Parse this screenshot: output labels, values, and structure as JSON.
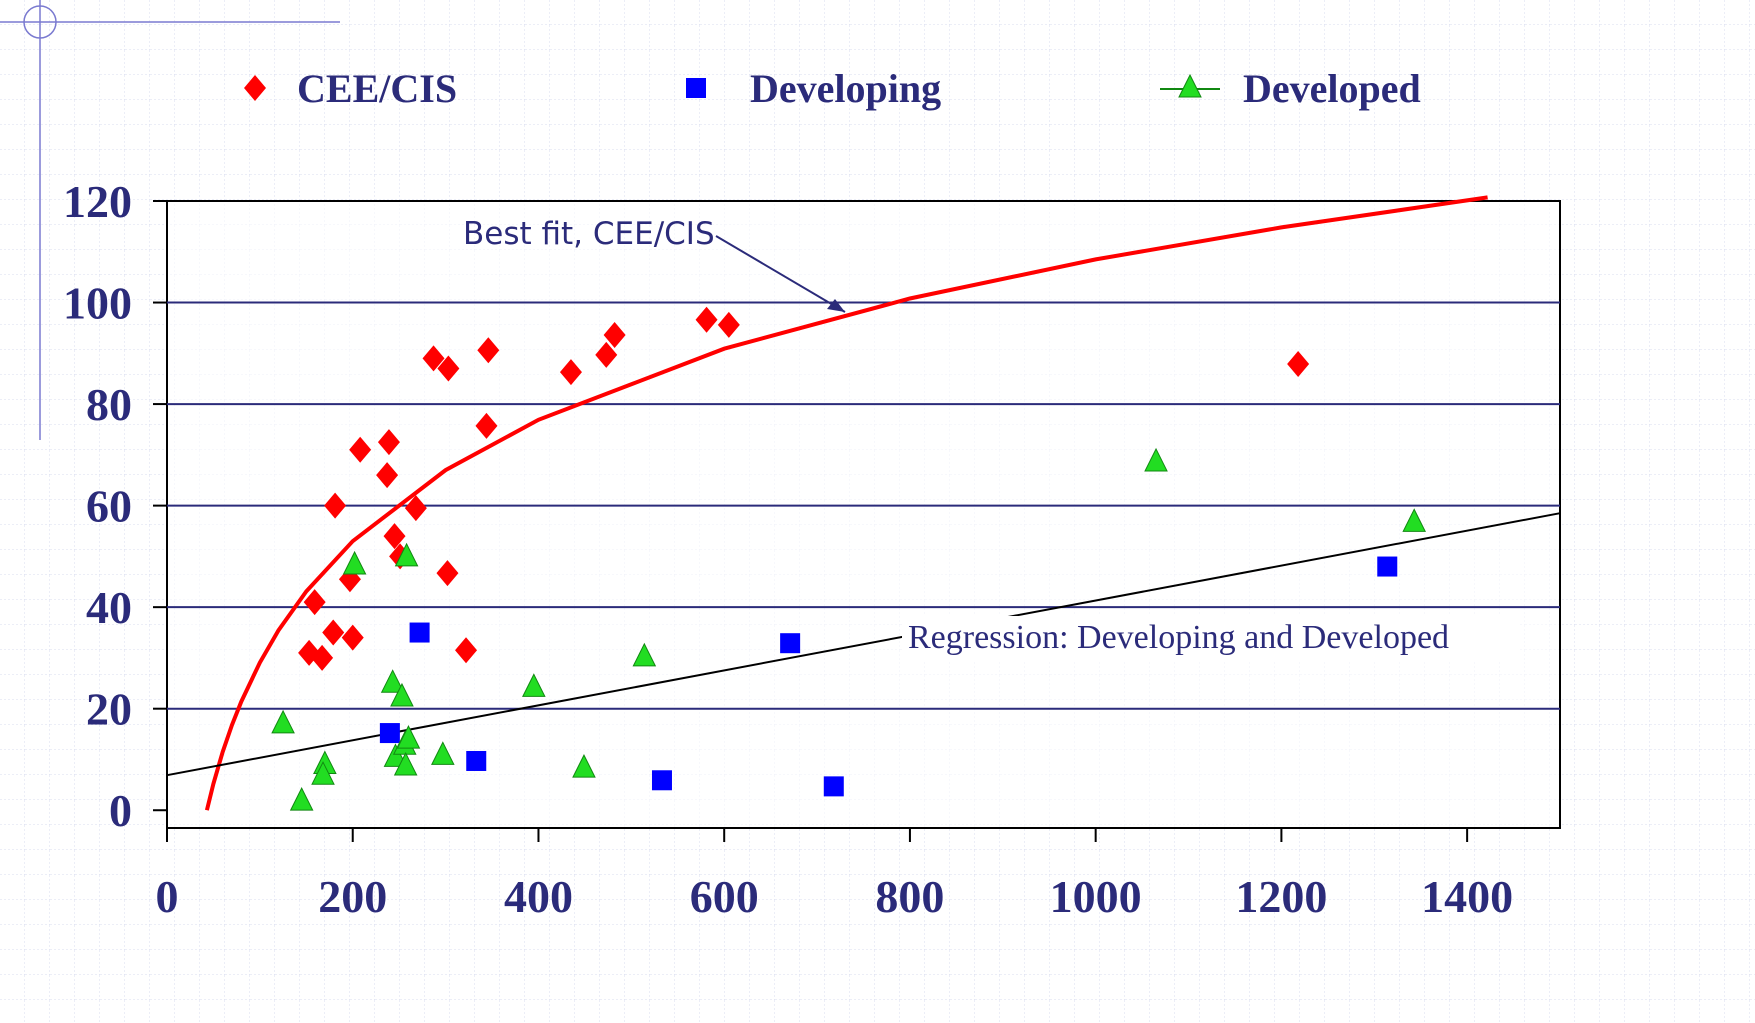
{
  "chart_data": {
    "type": "scatter",
    "xlim": [
      0,
      1500
    ],
    "ylim": [
      -3.5,
      120
    ],
    "xticks": [
      0,
      200,
      400,
      600,
      800,
      1000,
      1200,
      1400
    ],
    "yticks": [
      0,
      20,
      40,
      60,
      80,
      100,
      120
    ],
    "grid": true,
    "legend": "top",
    "series": [
      {
        "name": "CEE/CIS",
        "color": "#ff0000",
        "marker": "diamond",
        "x": [
          153,
          159,
          167,
          179,
          181,
          197,
          200,
          208,
          237,
          239,
          245,
          251,
          268,
          287,
          303,
          302,
          322,
          344,
          346,
          435,
          473,
          482,
          581,
          605,
          1218
        ],
        "values": [
          31,
          41,
          30,
          35,
          60,
          45.5,
          34,
          71,
          66,
          72.5,
          54,
          50,
          59.5,
          89,
          87,
          46.7,
          31.5,
          75.7,
          90.6,
          86.3,
          89.7,
          93.6,
          96.6,
          95.6,
          87.9
        ]
      },
      {
        "name": "Developing",
        "color": "#0000ff",
        "marker": "square",
        "x": [
          240,
          272,
          333,
          533,
          671,
          718,
          1314
        ],
        "values": [
          15.2,
          35,
          9.7,
          5.9,
          32.9,
          4.7,
          48
        ]
      },
      {
        "name": "Developed",
        "color": "#22dd22",
        "marker": "triangle",
        "x": [
          125,
          145,
          170,
          168,
          202,
          243,
          246,
          253,
          256,
          257,
          260,
          258,
          297,
          395,
          449,
          514,
          1065,
          1343
        ],
        "values": [
          17,
          1.8,
          9,
          6.9,
          48.3,
          25,
          10.4,
          22.3,
          12.8,
          8.7,
          14,
          49.9,
          10.8,
          24.2,
          8.3,
          30.2,
          68.6,
          56.7
        ]
      }
    ],
    "fits": [
      {
        "label": "Best fit, CEE/CIS",
        "color": "#ff0000",
        "x": [
          43,
          50,
          60,
          70,
          80,
          100,
          120,
          150,
          200,
          300,
          400,
          600,
          800,
          1000,
          1200,
          1422
        ],
        "values": [
          0,
          5.2,
          11.5,
          16.8,
          21.4,
          29.1,
          35.4,
          43.1,
          53.0,
          67.0,
          76.9,
          90.9,
          100.8,
          108.5,
          114.8,
          120.7
        ]
      },
      {
        "label": "Regression: Developing and Developed",
        "color": "#000000",
        "x": [
          0,
          1500
        ],
        "values": [
          6.9,
          58.5
        ]
      }
    ]
  }
}
